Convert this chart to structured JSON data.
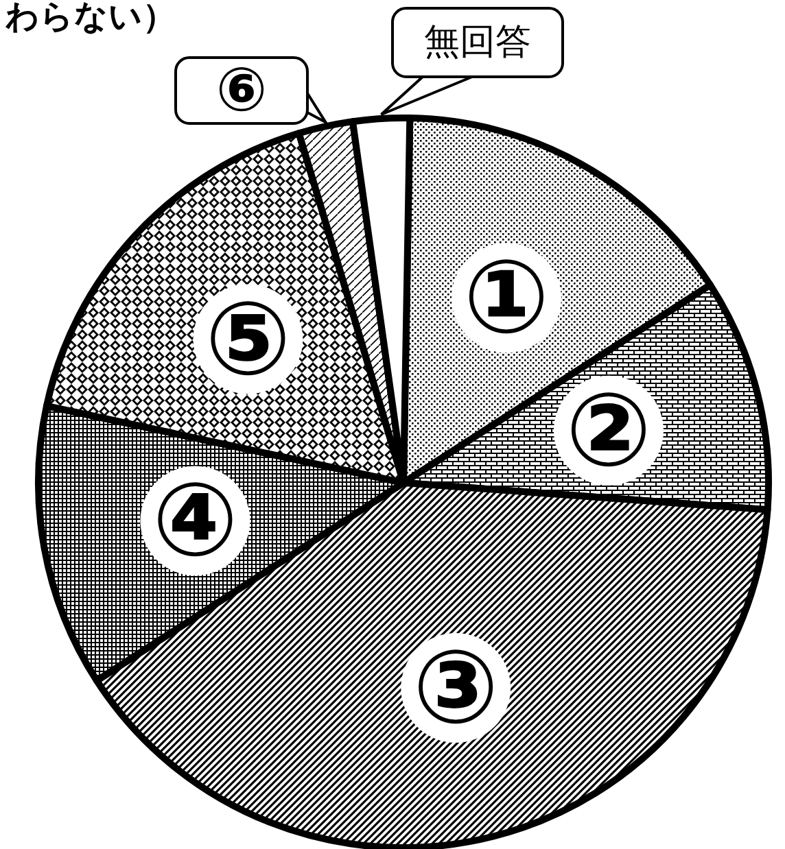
{
  "chart_data": {
    "type": "pie",
    "title": "わらない）",
    "categories": [
      "①",
      "②",
      "③",
      "④",
      "⑤",
      "⑥",
      "無回答"
    ],
    "values": [
      15.6,
      10.3,
      39.7,
      12.5,
      17.0,
      2.4,
      2.5
    ]
  }
}
